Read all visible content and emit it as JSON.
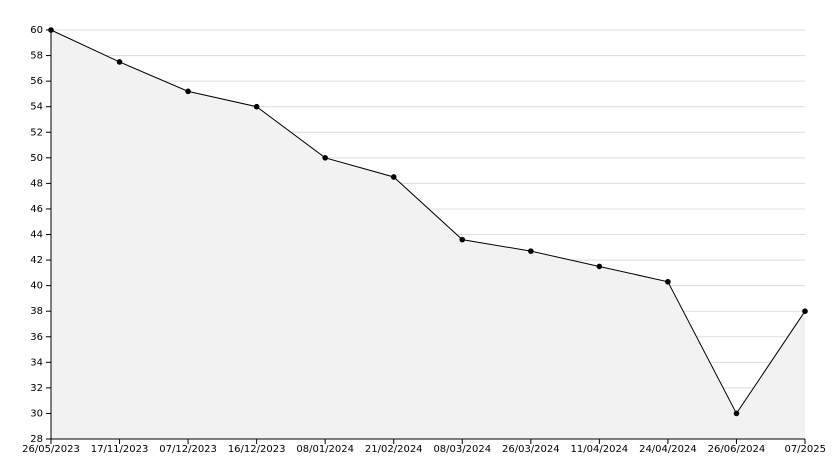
{
  "chart_data": {
    "type": "area",
    "categories": [
      "26/05/2023",
      "17/11/2023",
      "07/12/2023",
      "16/12/2023",
      "08/01/2024",
      "21/02/2024",
      "08/03/2024",
      "26/03/2024",
      "11/04/2024",
      "24/04/2024",
      "26/06/2024",
      "07/2025"
    ],
    "values": [
      60,
      57.5,
      55.2,
      54,
      50,
      48.5,
      43.6,
      42.7,
      41.5,
      40.3,
      30,
      38
    ],
    "color": "#000000",
    "fill": "#f2f2f2",
    "ylim": [
      28,
      60
    ],
    "yticks": [
      28,
      30,
      32,
      34,
      36,
      38,
      40,
      42,
      44,
      46,
      48,
      50,
      52,
      54,
      56,
      58,
      60
    ],
    "grid": true
  }
}
